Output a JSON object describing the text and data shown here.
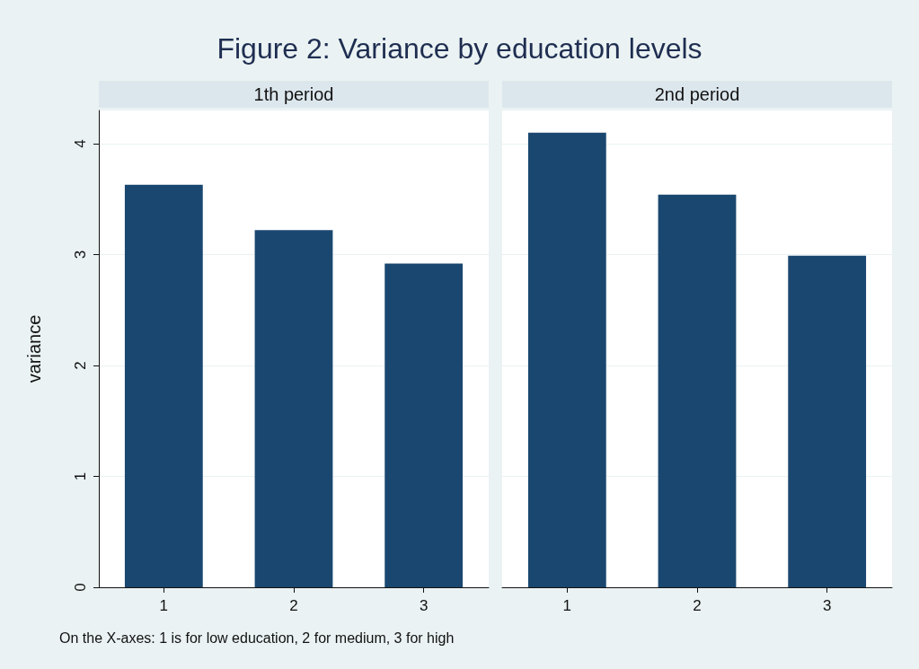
{
  "chart_data": [
    {
      "type": "bar",
      "title": "Figure 2: Variance by education levels",
      "subtitle": "1th period",
      "ylabel": "variance",
      "categories": [
        "1",
        "2",
        "3"
      ],
      "values": [
        3.63,
        3.22,
        2.92
      ],
      "color": "#1a476f",
      "ylim": [
        0,
        4.3
      ],
      "yticks": [
        0,
        1,
        2,
        3,
        4
      ],
      "grid": "y",
      "annotations": [
        "On the X-axes: 1 is for low education, 2 for medium, 3 for high"
      ]
    },
    {
      "type": "bar",
      "subtitle": "2nd period",
      "categories": [
        "1",
        "2",
        "3"
      ],
      "values": [
        4.1,
        3.54,
        2.99
      ],
      "color": "#1a476f",
      "ylim": [
        0,
        4.3
      ],
      "yticks": [
        0,
        1,
        2,
        3,
        4
      ],
      "grid": "y",
      "tick_labels": "x"
    }
  ]
}
